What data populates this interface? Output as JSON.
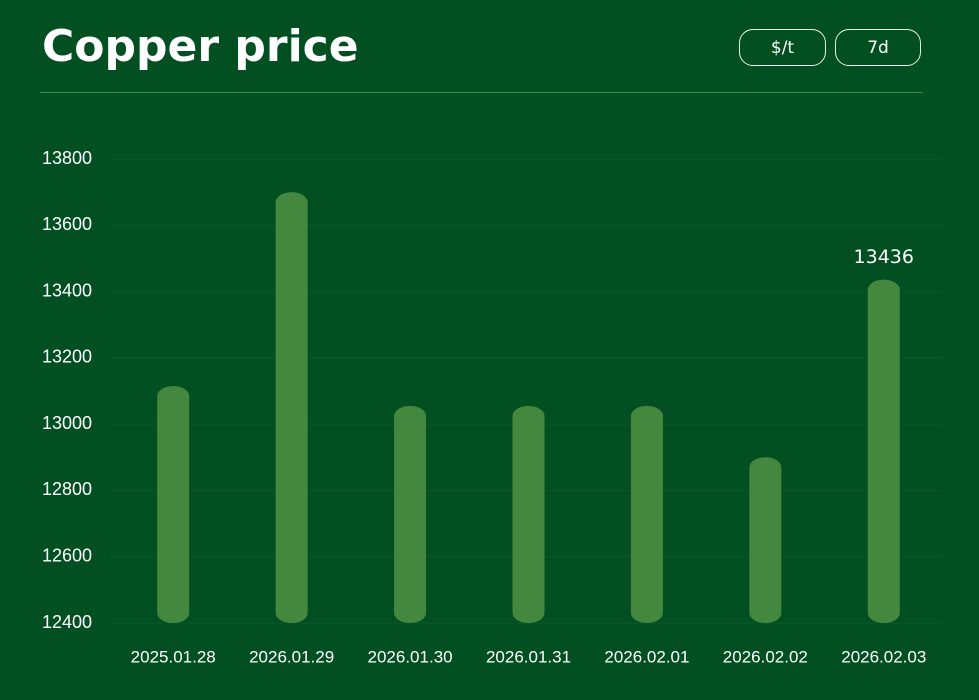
{
  "controls": [
    "$/t",
    "7d"
  ],
  "chart_data": {
    "type": "bar",
    "title": "Copper price",
    "categories": [
      "2025.01.28",
      "2026.01.29",
      "2026.01.30",
      "2026.01.31",
      "2026.02.01",
      "2026.02.02",
      "2026.02.03"
    ],
    "values": [
      13115,
      13700,
      13055,
      13055,
      13055,
      12900,
      13436
    ],
    "color": "#44883f",
    "ylim": [
      12400,
      13800
    ],
    "yticks": [
      12400,
      12600,
      12800,
      13000,
      13200,
      13400,
      13600,
      13800
    ],
    "grid": true
  }
}
